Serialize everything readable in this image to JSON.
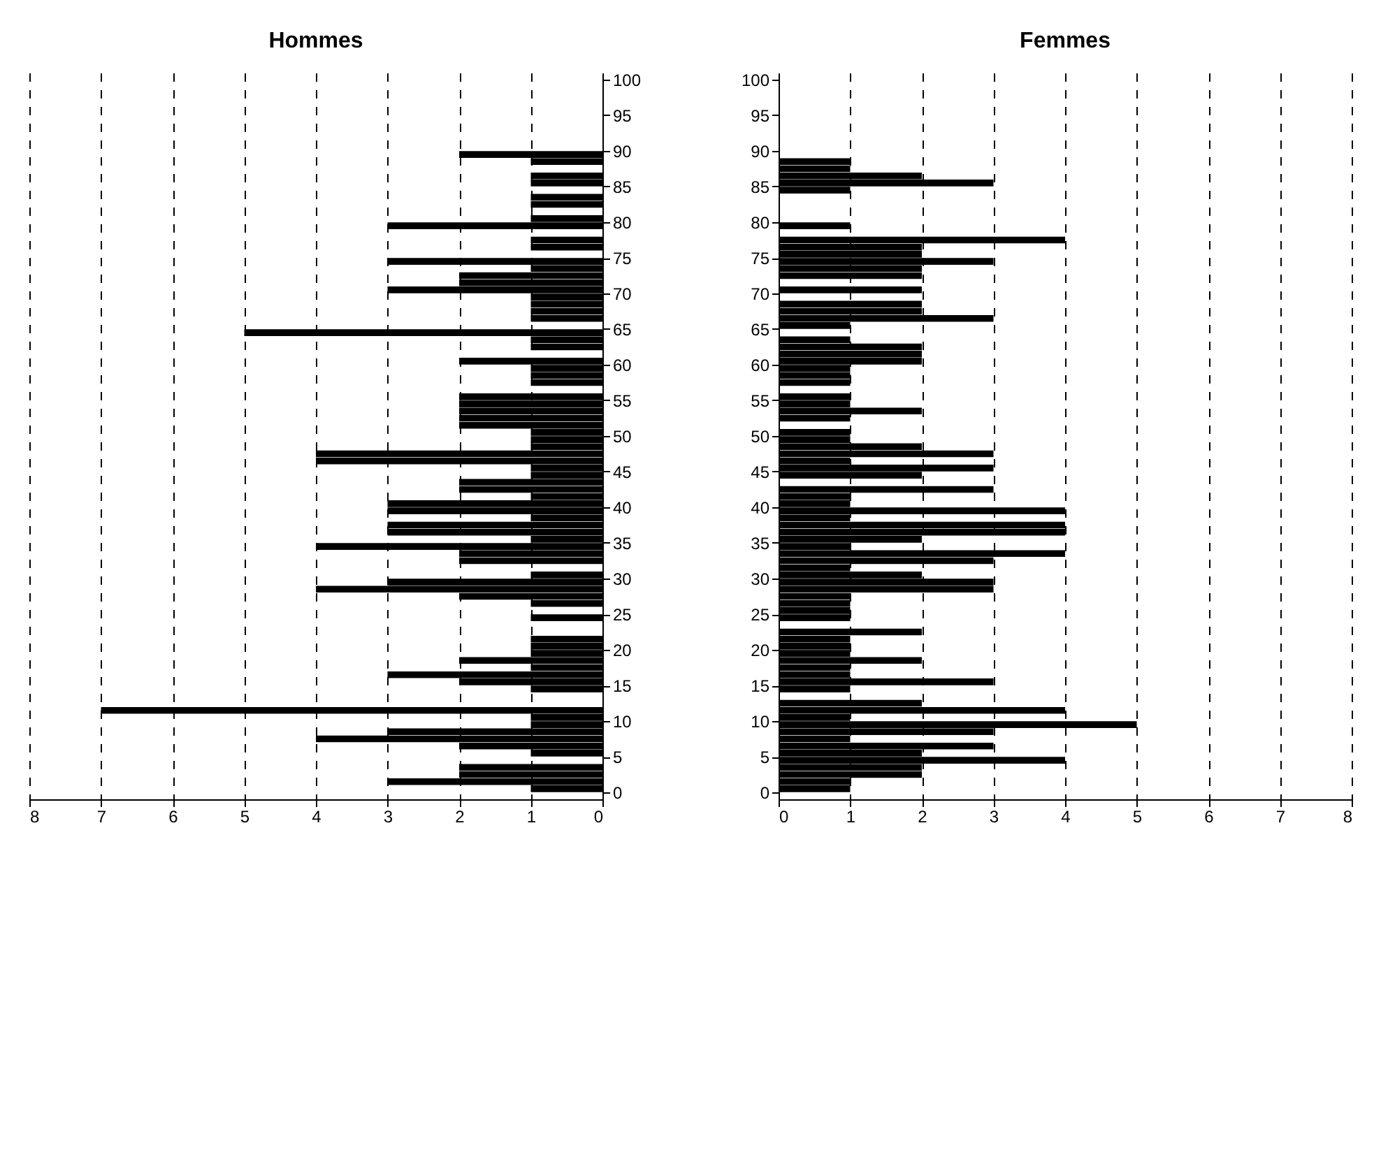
{
  "chart_data": [
    {
      "type": "bar",
      "title": "Hommes",
      "orientation": "horizontal",
      "grid": "x",
      "x": [
        0.5,
        1.5,
        2.5,
        3.5,
        4.5,
        5.5,
        6.5,
        7.5,
        8.5,
        9.5,
        10.5,
        11.5,
        12.5,
        13.5,
        14.5,
        15.5,
        16.5,
        17.5,
        18.5,
        19.5,
        20.5,
        21.5,
        22.5,
        23.5,
        24.5,
        25.5,
        26.5,
        27.5,
        28.5,
        29.5,
        30.5,
        31.5,
        32.5,
        33.5,
        34.5,
        35.5,
        36.5,
        37.5,
        38.5,
        39.5,
        40.5,
        41.5,
        42.5,
        43.5,
        44.5,
        45.5,
        46.5,
        47.5,
        48.5,
        49.5,
        50.5,
        51.5,
        52.5,
        53.5,
        54.5,
        55.5,
        56.5,
        57.5,
        58.5,
        59.5,
        60.5,
        61.5,
        62.5,
        63.5,
        64.5,
        65.5,
        66.5,
        67.5,
        68.5,
        69.5,
        70.5,
        71.5,
        72.5,
        73.5,
        74.5,
        75.5,
        76.5,
        77.5,
        78.5,
        79.5,
        80.5,
        81.5,
        82.5,
        83.5,
        84.5,
        85.5,
        86.5,
        87.5,
        88.5,
        89.5
      ],
      "series": [
        {
          "color": "#000000",
          "values": [
            1,
            3,
            2,
            2,
            0,
            1,
            2,
            4,
            3,
            1,
            1,
            7,
            0,
            0,
            1,
            2,
            3,
            1,
            2,
            1,
            1,
            1,
            0,
            0,
            1,
            0,
            1,
            2,
            4,
            3,
            1,
            0,
            2,
            2,
            4,
            1,
            3,
            3,
            1,
            3,
            3,
            1,
            2,
            2,
            1,
            1,
            4,
            4,
            1,
            1,
            1,
            2,
            2,
            2,
            2,
            2,
            0,
            1,
            1,
            1,
            2,
            0,
            1,
            1,
            5,
            0,
            1,
            1,
            1,
            1,
            3,
            2,
            2,
            1,
            3,
            0,
            1,
            1,
            0,
            3,
            1,
            0,
            1,
            1,
            0,
            1,
            1,
            0,
            1,
            2
          ]
        }
      ],
      "xlim": [
        8,
        0
      ],
      "xticks": [
        0,
        1,
        2,
        3,
        4,
        5,
        6,
        7,
        8
      ],
      "ylim": [
        0,
        100
      ],
      "yticks": [
        0,
        5,
        10,
        15,
        20,
        25,
        30,
        35,
        40,
        45,
        50,
        55,
        60,
        65,
        70,
        75,
        80,
        85,
        90,
        95,
        100
      ]
    },
    {
      "type": "bar",
      "title": "Femmes",
      "orientation": "horizontal",
      "grid": "x",
      "x": [
        0.5,
        1.5,
        2.5,
        3.5,
        4.5,
        5.5,
        6.5,
        7.5,
        8.5,
        9.5,
        10.5,
        11.5,
        12.5,
        13.5,
        14.5,
        15.5,
        16.5,
        17.5,
        18.5,
        19.5,
        20.5,
        21.5,
        22.5,
        23.5,
        24.5,
        25.5,
        26.5,
        27.5,
        28.5,
        29.5,
        30.5,
        31.5,
        32.5,
        33.5,
        34.5,
        35.5,
        36.5,
        37.5,
        38.5,
        39.5,
        40.5,
        41.5,
        42.5,
        43.5,
        44.5,
        45.5,
        46.5,
        47.5,
        48.5,
        49.5,
        50.5,
        51.5,
        52.5,
        53.5,
        54.5,
        55.5,
        56.5,
        57.5,
        58.5,
        59.5,
        60.5,
        61.5,
        62.5,
        63.5,
        64.5,
        65.5,
        66.5,
        67.5,
        68.5,
        69.5,
        70.5,
        71.5,
        72.5,
        73.5,
        74.5,
        75.5,
        76.5,
        77.5,
        78.5,
        79.5,
        80.5,
        81.5,
        82.5,
        83.5,
        84.5,
        85.5,
        86.5,
        87.5,
        88.5,
        89.5
      ],
      "series": [
        {
          "color": "#000000",
          "values": [
            1,
            1,
            2,
            2,
            4,
            2,
            3,
            1,
            3,
            5,
            1,
            4,
            2,
            0,
            1,
            3,
            1,
            1,
            2,
            1,
            1,
            1,
            2,
            0,
            1,
            1,
            1,
            1,
            3,
            3,
            2,
            1,
            3,
            4,
            1,
            2,
            4,
            4,
            1,
            4,
            1,
            1,
            3,
            0,
            2,
            3,
            1,
            3,
            2,
            1,
            1,
            0,
            1,
            2,
            1,
            1,
            0,
            1,
            1,
            1,
            2,
            2,
            2,
            1,
            0,
            1,
            3,
            2,
            2,
            0,
            2,
            0,
            2,
            2,
            3,
            2,
            2,
            4,
            0,
            1,
            0,
            0,
            0,
            0,
            1,
            3,
            2,
            1,
            1,
            0
          ]
        }
      ],
      "xlim": [
        0,
        8
      ],
      "xticks": [
        0,
        1,
        2,
        3,
        4,
        5,
        6,
        7,
        8
      ],
      "ylim": [
        0,
        100
      ],
      "yticks": [
        0,
        5,
        10,
        15,
        20,
        25,
        30,
        35,
        40,
        45,
        50,
        55,
        60,
        65,
        70,
        75,
        80,
        85,
        90,
        95,
        100
      ]
    }
  ]
}
